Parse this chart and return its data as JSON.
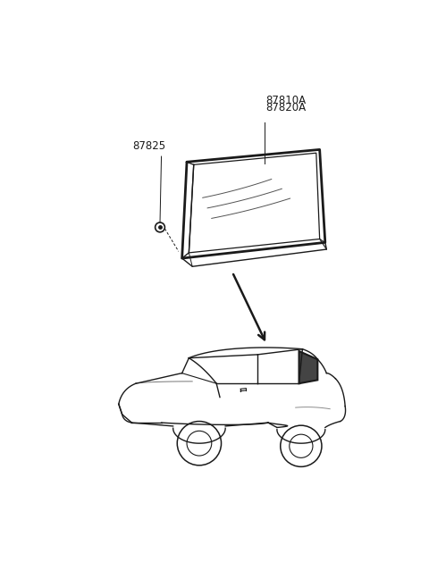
{
  "bg_color": "#ffffff",
  "label_87810A": "87810A",
  "label_87820A": "87820A",
  "label_87825": "87825",
  "font_size_labels": 8.5,
  "lc": "#1a1a1a"
}
